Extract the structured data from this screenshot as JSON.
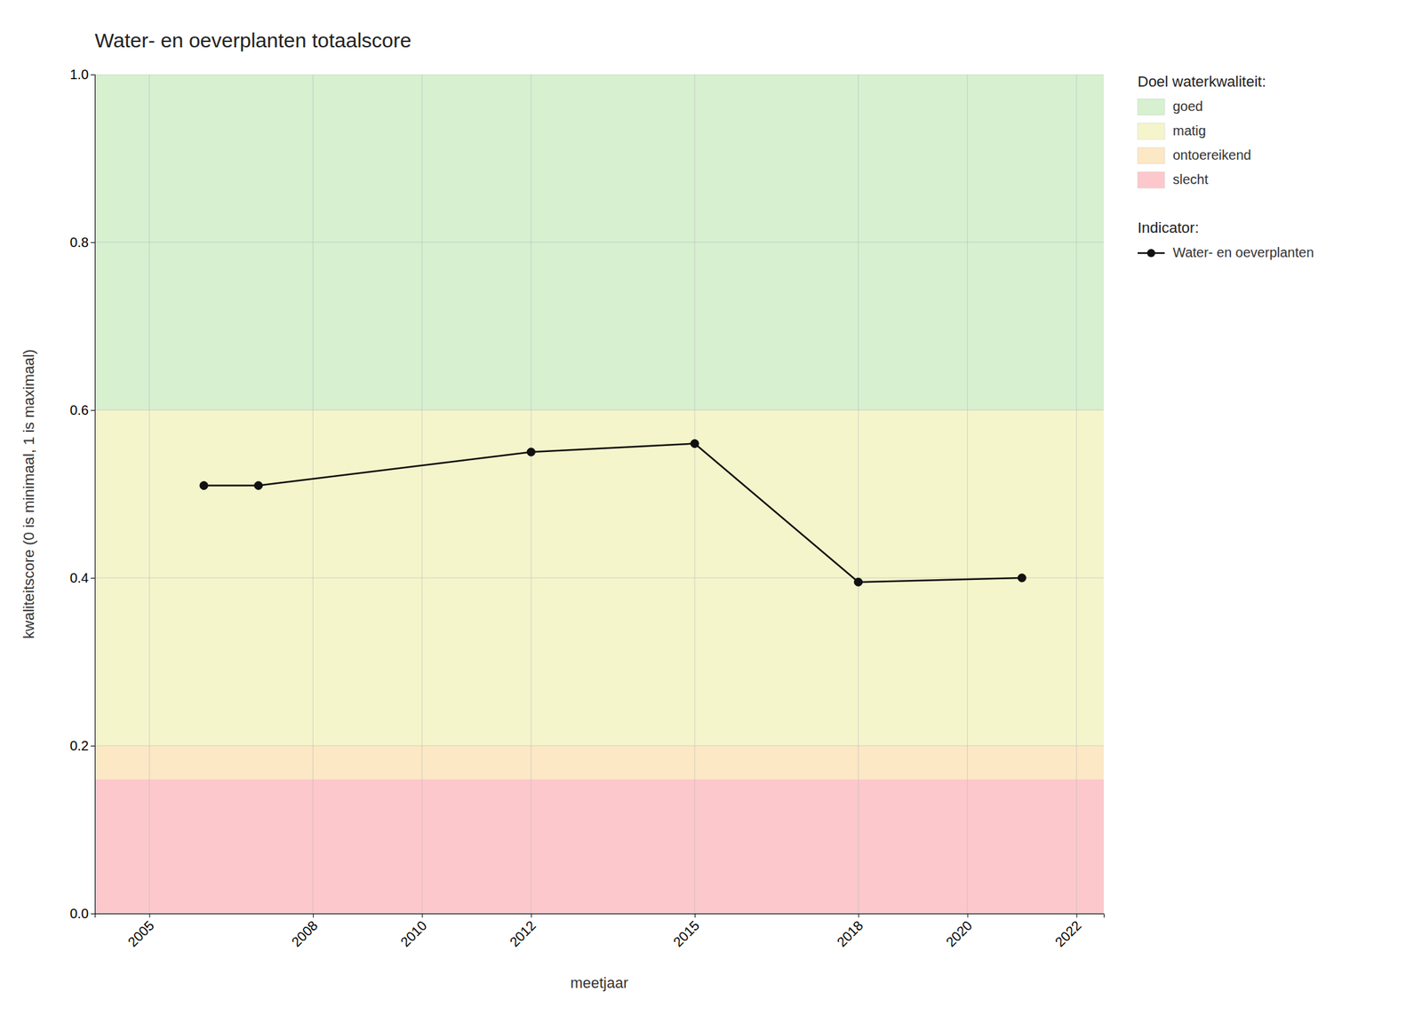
{
  "chart_data": {
    "type": "line",
    "title": "Water- en oeverplanten totaalscore",
    "x_label": "meetjaar",
    "y_label": "kwaliteitscore (0 is minimaal, 1 is maximaal)",
    "x": [
      2006,
      2007,
      2012,
      2015,
      2018,
      2021
    ],
    "series": [
      {
        "name": "Water- en oeverplanten",
        "color": "#111111",
        "marker": "circle",
        "line_style": "solid",
        "values": [
          0.51,
          0.51,
          0.55,
          0.56,
          0.395,
          0.4
        ]
      }
    ],
    "series_legend_title": "Indicator:",
    "zones": {
      "title": "Doel waterkwaliteit:",
      "bands": [
        {
          "ymin": 0.6,
          "ymax": 1.0,
          "color": "#d6f0d0",
          "label": "goed"
        },
        {
          "ymin": 0.2,
          "ymax": 0.6,
          "color": "#f5f5cc",
          "label": "matig"
        },
        {
          "ymin": 0.16,
          "ymax": 0.2,
          "color": "#fce8c5",
          "label": "ontoereikend"
        },
        {
          "ymin": 0.0,
          "ymax": 0.16,
          "color": "#fcc8cc",
          "label": "slecht"
        }
      ]
    },
    "xlim": [
      2004.0,
      2022.5
    ],
    "ylim": [
      0.0,
      1.0
    ],
    "xticks": [
      2005,
      2008,
      2010,
      2012,
      2015,
      2018,
      2020,
      2022
    ],
    "yticks": [
      {
        "value": 0.0,
        "label": "0.0"
      },
      0.2,
      0.4,
      0.6,
      0.8,
      {
        "value": 1.0,
        "label": "1.0"
      }
    ],
    "grid": true,
    "legend": "right"
  }
}
